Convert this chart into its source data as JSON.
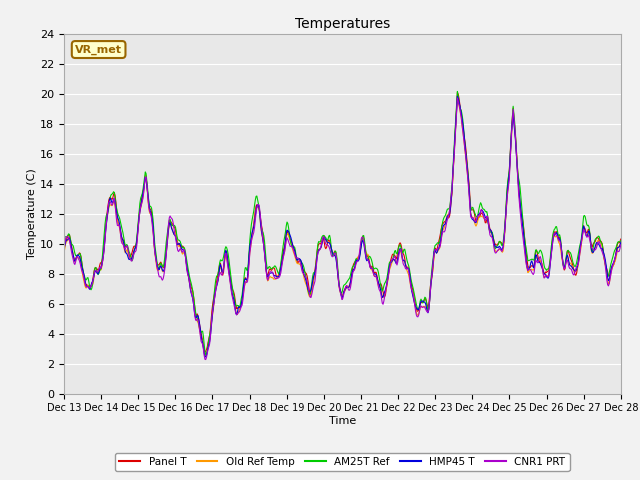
{
  "title": "Temperatures",
  "xlabel": "Time",
  "ylabel": "Temperature (C)",
  "ylim": [
    0,
    24
  ],
  "yticks": [
    0,
    2,
    4,
    6,
    8,
    10,
    12,
    14,
    16,
    18,
    20,
    22,
    24
  ],
  "xtick_labels": [
    "Dec 13",
    "Dec 14",
    "Dec 15",
    "Dec 16",
    "Dec 17",
    "Dec 18",
    "Dec 19",
    "Dec 20",
    "Dec 21",
    "Dec 22",
    "Dec 23",
    "Dec 24",
    "Dec 25",
    "Dec 26",
    "Dec 27",
    "Dec 28"
  ],
  "series_names": [
    "Panel T",
    "Old Ref Temp",
    "AM25T Ref",
    "HMP45 T",
    "CNR1 PRT"
  ],
  "series_colors": [
    "#dd0000",
    "#ff9900",
    "#00cc00",
    "#0000dd",
    "#aa00cc"
  ],
  "series_linewidths": [
    0.8,
    0.8,
    0.8,
    0.8,
    0.8
  ],
  "bg_color": "#e8e8e8",
  "fig_color": "#f2f2f2",
  "grid_color": "#ffffff",
  "annotation_text": "VR_met",
  "annotation_bg": "#ffffcc",
  "annotation_border": "#996600",
  "n_points": 720
}
